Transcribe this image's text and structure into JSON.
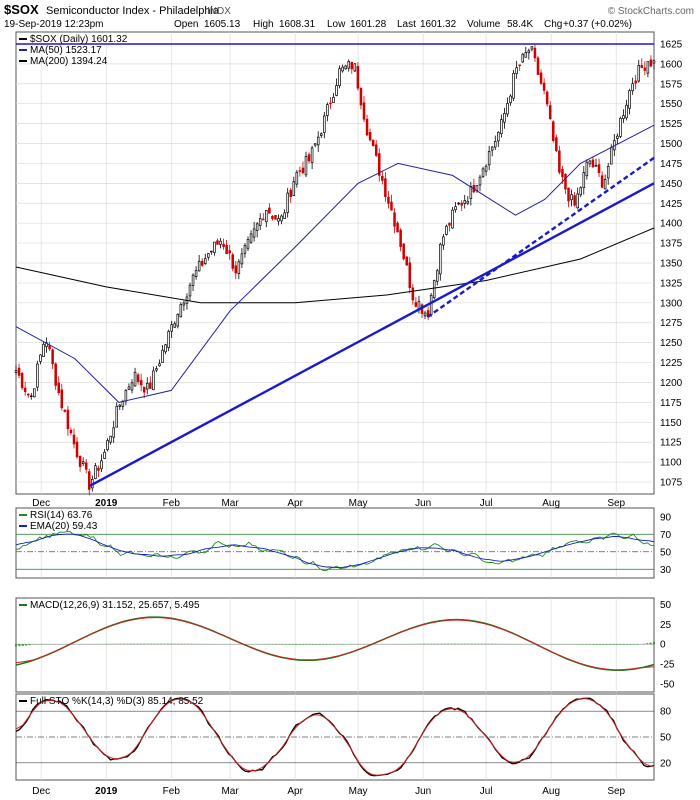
{
  "header": {
    "symbol": "$SOX",
    "name": "Semiconductor Index - Philadelphia",
    "exchange": "INDX",
    "datetime": "19-Sep-2019 12:23pm",
    "quote": {
      "open_label": "Open",
      "open": "1605.13",
      "high_label": "High",
      "high": "1608.31",
      "low_label": "Low",
      "low": "1601.28",
      "last_label": "Last",
      "last": "1601.32",
      "volume_label": "Volume",
      "volume": "58.4K",
      "chg_label": "Chg",
      "chg": "+0.37 (+0.02%)"
    },
    "watermark": "© StockCharts.com"
  },
  "colors": {
    "up": "#000000",
    "down": "#d00000",
    "trendline": "#1a1acc",
    "ma50": "#22229a",
    "ma200": "#000000",
    "rsi": "#1a8c1a",
    "ema": "#1a1acc",
    "macd": "#1a7a1a",
    "signal": "#cc2222",
    "hist": "#2a9a2a",
    "stok": "#000000",
    "stod": "#cc2222",
    "grid": "#dcdcdc",
    "frame": "#555555"
  },
  "chart_data": [
    {
      "type": "candlestick",
      "legend": [
        {
          "label": "$SOX (Daily) 1601.32",
          "color": "#000000"
        },
        {
          "label": "MA(50) 1523.17",
          "color": "#22229a"
        },
        {
          "label": "MA(200) 1394.24",
          "color": "#000000"
        }
      ],
      "ylim": [
        1060,
        1640
      ],
      "yticks": [
        1075,
        1100,
        1125,
        1150,
        1175,
        1200,
        1225,
        1250,
        1275,
        1300,
        1325,
        1350,
        1375,
        1400,
        1425,
        1450,
        1475,
        1500,
        1525,
        1550,
        1575,
        1600,
        1625
      ],
      "date_range": [
        "2018-11-19",
        "2019-09-19"
      ],
      "xticks": [
        "Dec",
        "2019",
        "Feb",
        "Mar",
        "Apr",
        "May",
        "Jun",
        "Jul",
        "Aug",
        "Sep"
      ],
      "price_path": [
        [
          "2018-11-19",
          1215
        ],
        [
          "2018-11-26",
          1180
        ],
        [
          "2018-12-03",
          1260
        ],
        [
          "2018-12-10",
          1180
        ],
        [
          "2018-12-17",
          1120
        ],
        [
          "2018-12-24",
          1072
        ],
        [
          "2018-12-31",
          1110
        ],
        [
          "2019-01-07",
          1170
        ],
        [
          "2019-01-14",
          1210
        ],
        [
          "2019-01-21",
          1190
        ],
        [
          "2019-01-28",
          1240
        ],
        [
          "2019-02-04",
          1290
        ],
        [
          "2019-02-11",
          1330
        ],
        [
          "2019-02-18",
          1360
        ],
        [
          "2019-02-25",
          1380
        ],
        [
          "2019-03-04",
          1340
        ],
        [
          "2019-03-11",
          1380
        ],
        [
          "2019-03-18",
          1420
        ],
        [
          "2019-03-25",
          1400
        ],
        [
          "2019-04-01",
          1460
        ],
        [
          "2019-04-08",
          1480
        ],
        [
          "2019-04-15",
          1530
        ],
        [
          "2019-04-22",
          1590
        ],
        [
          "2019-04-29",
          1600
        ],
        [
          "2019-05-06",
          1510
        ],
        [
          "2019-05-13",
          1450
        ],
        [
          "2019-05-20",
          1390
        ],
        [
          "2019-05-27",
          1310
        ],
        [
          "2019-06-03",
          1285
        ],
        [
          "2019-06-10",
          1380
        ],
        [
          "2019-06-17",
          1420
        ],
        [
          "2019-06-24",
          1440
        ],
        [
          "2019-07-01",
          1480
        ],
        [
          "2019-07-08",
          1520
        ],
        [
          "2019-07-15",
          1590
        ],
        [
          "2019-07-22",
          1620
        ],
        [
          "2019-07-29",
          1560
        ],
        [
          "2019-08-05",
          1460
        ],
        [
          "2019-08-12",
          1420
        ],
        [
          "2019-08-19",
          1480
        ],
        [
          "2019-08-26",
          1450
        ],
        [
          "2019-09-02",
          1520
        ],
        [
          "2019-09-09",
          1580
        ],
        [
          "2019-09-16",
          1605
        ],
        [
          "2019-09-19",
          1601
        ]
      ],
      "ma50": [
        [
          "2018-11-19",
          1270
        ],
        [
          "2018-12-17",
          1230
        ],
        [
          "2019-01-07",
          1175
        ],
        [
          "2019-02-01",
          1190
        ],
        [
          "2019-03-01",
          1290
        ],
        [
          "2019-04-01",
          1370
        ],
        [
          "2019-05-01",
          1450
        ],
        [
          "2019-05-20",
          1475
        ],
        [
          "2019-06-15",
          1460
        ],
        [
          "2019-07-15",
          1410
        ],
        [
          "2019-07-29",
          1430
        ],
        [
          "2019-08-15",
          1475
        ],
        [
          "2019-09-19",
          1523
        ]
      ],
      "ma200": [
        [
          "2018-11-19",
          1345
        ],
        [
          "2019-01-01",
          1320
        ],
        [
          "2019-02-15",
          1300
        ],
        [
          "2019-04-01",
          1300
        ],
        [
          "2019-05-15",
          1310
        ],
        [
          "2019-07-01",
          1328
        ],
        [
          "2019-08-15",
          1355
        ],
        [
          "2019-09-19",
          1394
        ]
      ],
      "trendlines": [
        {
          "style": "solid",
          "from": [
            "2018-12-24",
            1070
          ],
          "to": [
            "2019-09-19",
            1450
          ]
        },
        {
          "style": "dashed",
          "from": [
            "2019-06-03",
            1282
          ],
          "to": [
            "2019-09-19",
            1482
          ]
        }
      ],
      "resistance": 1625
    },
    {
      "type": "line",
      "legend": [
        {
          "label": "RSI(14) 63.76",
          "color": "#1a8c1a"
        },
        {
          "label": "EMA(20) 59.43",
          "color": "#1a1acc"
        }
      ],
      "ylim": [
        20,
        100
      ],
      "yticks": [
        30,
        50,
        70,
        90
      ],
      "levels": [
        30,
        70
      ]
    },
    {
      "type": "line",
      "legend": [
        {
          "label": "MACD(12,26,9) 31.152, 25.657, 5.495",
          "color": "#1a7a1a"
        }
      ],
      "ylim": [
        -60,
        58
      ],
      "yticks": [
        -50,
        -25,
        0,
        25,
        50
      ]
    },
    {
      "type": "line",
      "legend": [
        {
          "label": "Full STO %K(14,3) %D(3) 85.14, 85.52",
          "color": "#000000"
        }
      ],
      "ylim": [
        0,
        100
      ],
      "yticks": [
        20,
        50,
        80
      ]
    }
  ]
}
